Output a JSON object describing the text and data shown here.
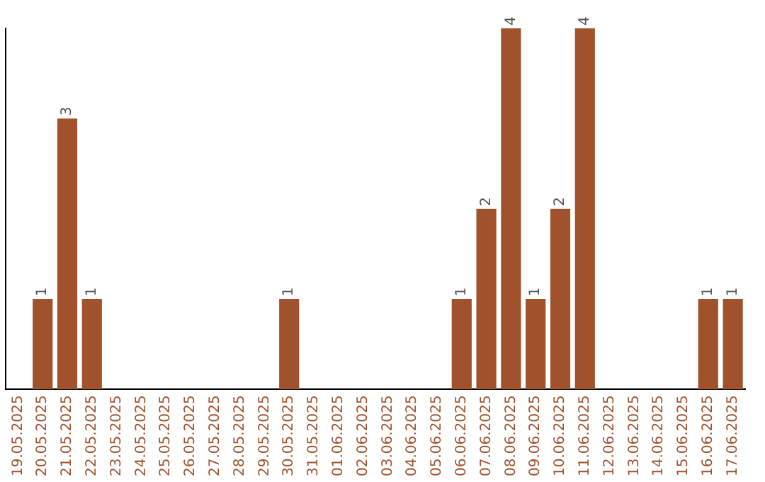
{
  "chart_data": {
    "type": "bar",
    "categories": [
      "19.05.2025",
      "20.05.2025",
      "21.05.2025",
      "22.05.2025",
      "23.05.2025",
      "24.05.2025",
      "25.05.2025",
      "26.05.2025",
      "27.05.2025",
      "28.05.2025",
      "29.05.2025",
      "30.05.2025",
      "31.05.2025",
      "01.06.2025",
      "02.06.2025",
      "03.06.2025",
      "04.06.2025",
      "05.06.2025",
      "06.06.2025",
      "07.06.2025",
      "08.06.2025",
      "09.06.2025",
      "10.06.2025",
      "11.06.2025",
      "12.06.2025",
      "13.06.2025",
      "14.06.2025",
      "15.06.2025",
      "16.06.2025",
      "17.06.2025"
    ],
    "values": [
      0,
      1,
      3,
      1,
      0,
      0,
      0,
      0,
      0,
      0,
      0,
      1,
      0,
      0,
      0,
      0,
      0,
      0,
      1,
      2,
      4,
      1,
      2,
      4,
      0,
      0,
      0,
      0,
      1,
      1
    ],
    "value_labels": [
      null,
      "1",
      "3",
      "1",
      null,
      null,
      null,
      null,
      null,
      null,
      null,
      "1",
      null,
      null,
      null,
      null,
      null,
      null,
      "1",
      "2",
      "4",
      "1",
      "2",
      "4",
      null,
      null,
      null,
      null,
      "1",
      "1"
    ],
    "color": "#a0522d",
    "grid": false,
    "legend": false,
    "tick_labels": "x"
  }
}
